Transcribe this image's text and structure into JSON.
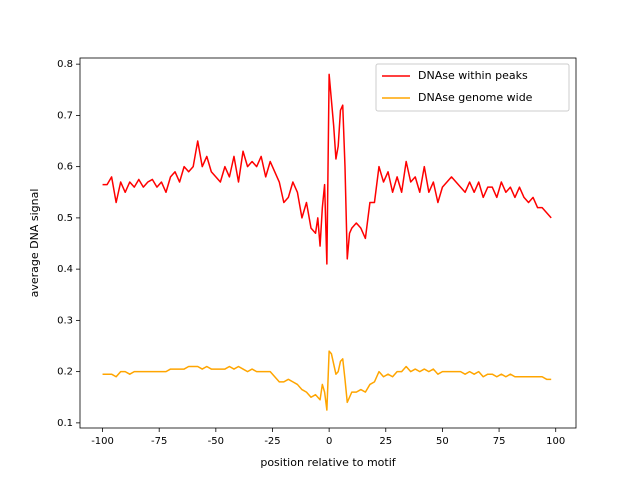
{
  "chart_data": {
    "type": "line",
    "xlabel": "position relative to motif",
    "ylabel": "average DNA signal",
    "x": [
      -100,
      -98,
      -96,
      -94,
      -92,
      -90,
      -88,
      -86,
      -84,
      -82,
      -80,
      -78,
      -76,
      -74,
      -72,
      -70,
      -68,
      -66,
      -64,
      -62,
      -60,
      -58,
      -56,
      -54,
      -52,
      -50,
      -48,
      -46,
      -44,
      -42,
      -40,
      -38,
      -36,
      -34,
      -32,
      -30,
      -28,
      -26,
      -24,
      -22,
      -20,
      -18,
      -16,
      -14,
      -12,
      -10,
      -8,
      -6,
      -5,
      -4,
      -3,
      -2,
      -1,
      0,
      1,
      2,
      3,
      4,
      5,
      6,
      7,
      8,
      9,
      10,
      12,
      14,
      16,
      18,
      20,
      22,
      24,
      26,
      28,
      30,
      32,
      34,
      36,
      38,
      40,
      42,
      44,
      46,
      48,
      50,
      52,
      54,
      56,
      58,
      60,
      62,
      64,
      66,
      68,
      70,
      72,
      74,
      76,
      78,
      80,
      82,
      84,
      86,
      88,
      90,
      92,
      94,
      96,
      98
    ],
    "series": [
      {
        "name": "DNAse within peaks",
        "color": "#ff0000",
        "values": [
          0.565,
          0.565,
          0.58,
          0.53,
          0.57,
          0.55,
          0.57,
          0.56,
          0.575,
          0.56,
          0.57,
          0.575,
          0.56,
          0.57,
          0.55,
          0.58,
          0.59,
          0.57,
          0.6,
          0.59,
          0.6,
          0.65,
          0.6,
          0.62,
          0.59,
          0.58,
          0.57,
          0.6,
          0.58,
          0.62,
          0.57,
          0.63,
          0.6,
          0.61,
          0.6,
          0.62,
          0.58,
          0.61,
          0.59,
          0.57,
          0.53,
          0.54,
          0.57,
          0.55,
          0.5,
          0.53,
          0.48,
          0.47,
          0.5,
          0.445,
          0.52,
          0.565,
          0.41,
          0.78,
          0.73,
          0.68,
          0.615,
          0.64,
          0.71,
          0.72,
          0.6,
          0.42,
          0.47,
          0.48,
          0.49,
          0.48,
          0.46,
          0.53,
          0.53,
          0.6,
          0.57,
          0.59,
          0.55,
          0.58,
          0.55,
          0.61,
          0.57,
          0.58,
          0.55,
          0.6,
          0.55,
          0.57,
          0.53,
          0.56,
          0.57,
          0.58,
          0.57,
          0.56,
          0.55,
          0.57,
          0.55,
          0.57,
          0.54,
          0.56,
          0.56,
          0.54,
          0.57,
          0.55,
          0.56,
          0.54,
          0.56,
          0.54,
          0.53,
          0.54,
          0.52,
          0.52,
          0.51,
          0.5
        ]
      },
      {
        "name": "DNAse genome wide",
        "color": "#ffa500",
        "values": [
          0.195,
          0.195,
          0.195,
          0.19,
          0.2,
          0.2,
          0.195,
          0.2,
          0.2,
          0.2,
          0.2,
          0.2,
          0.2,
          0.2,
          0.2,
          0.205,
          0.205,
          0.205,
          0.205,
          0.21,
          0.21,
          0.21,
          0.205,
          0.21,
          0.205,
          0.205,
          0.205,
          0.205,
          0.21,
          0.205,
          0.21,
          0.205,
          0.2,
          0.205,
          0.2,
          0.2,
          0.2,
          0.2,
          0.19,
          0.18,
          0.18,
          0.185,
          0.18,
          0.175,
          0.165,
          0.16,
          0.15,
          0.155,
          0.15,
          0.145,
          0.175,
          0.16,
          0.125,
          0.24,
          0.235,
          0.215,
          0.195,
          0.2,
          0.22,
          0.225,
          0.185,
          0.14,
          0.15,
          0.16,
          0.16,
          0.165,
          0.16,
          0.175,
          0.18,
          0.2,
          0.19,
          0.195,
          0.19,
          0.2,
          0.2,
          0.21,
          0.2,
          0.205,
          0.2,
          0.205,
          0.2,
          0.205,
          0.195,
          0.2,
          0.2,
          0.2,
          0.2,
          0.2,
          0.195,
          0.2,
          0.195,
          0.2,
          0.19,
          0.195,
          0.195,
          0.19,
          0.195,
          0.19,
          0.195,
          0.19,
          0.19,
          0.19,
          0.19,
          0.19,
          0.19,
          0.19,
          0.185,
          0.185
        ]
      }
    ],
    "xlim": [
      -109.95,
      108.95
    ],
    "xticks": [
      -100,
      -75,
      -50,
      -25,
      0,
      25,
      50,
      75,
      100
    ],
    "ylim": [
      0.09,
      0.812
    ],
    "yticks": [
      0.1,
      0.2,
      0.3,
      0.4,
      0.5,
      0.6,
      0.7,
      0.8
    ],
    "legend": "upper right",
    "grid": false
  }
}
